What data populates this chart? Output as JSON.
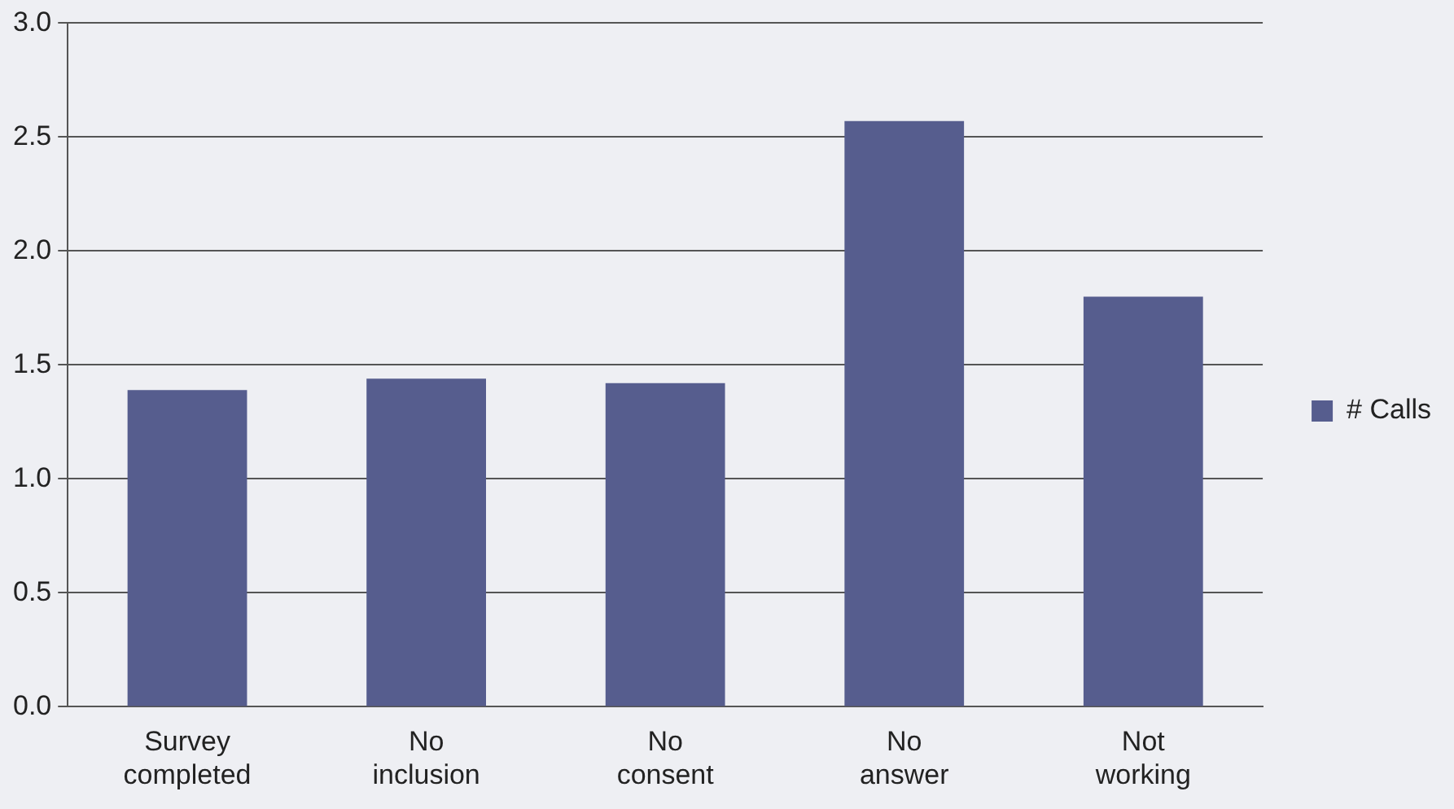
{
  "chart_data": {
    "type": "bar",
    "categories": [
      "Survey completed",
      "No inclusion",
      "No consent",
      "No answer",
      "Not working"
    ],
    "series": [
      {
        "name": "# Calls",
        "color": "#565d8e",
        "values": [
          1.39,
          1.44,
          1.42,
          2.57,
          1.8
        ]
      }
    ],
    "ylim": [
      0,
      3
    ],
    "yticks": [
      {
        "value": 0,
        "label": "0.0"
      },
      {
        "value": 0.5,
        "label": "0.5"
      },
      {
        "value": 1,
        "label": "1.0"
      },
      {
        "value": 1.5,
        "label": "1.5"
      },
      {
        "value": 2,
        "label": "2.0"
      },
      {
        "value": 2.5,
        "label": "2.5"
      },
      {
        "value": 3,
        "label": "3.0"
      }
    ],
    "grid": "y",
    "legend": "right"
  }
}
